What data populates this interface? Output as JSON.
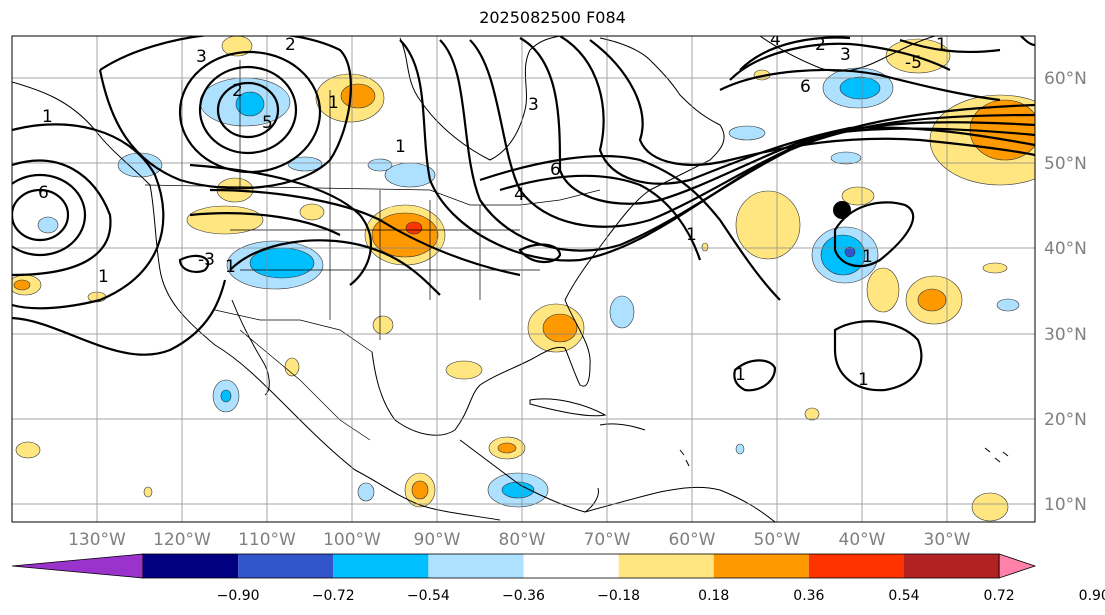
{
  "title": "2025082500 F084",
  "latitude_labels": [
    "60°N",
    "50°N",
    "40°N",
    "30°N",
    "20°N",
    "10°N"
  ],
  "longitude_labels": [
    "130°W",
    "120°W",
    "110°W",
    "100°W",
    "90°W",
    "80°W",
    "70°W",
    "60°W",
    "50°W",
    "40°W",
    "30°W"
  ],
  "colorbar": {
    "tick_labels": [
      "−0.90",
      "−0.72",
      "−0.54",
      "−0.36",
      "−0.18",
      "0.18",
      "0.36",
      "0.54",
      "0.72",
      "0.90"
    ],
    "colors": [
      "#9933cc",
      "#000080",
      "#3355cc",
      "#00bfff",
      "#aee0ff",
      "#ffffff",
      "#ffe680",
      "#ff9900",
      "#ff3300",
      "#b22222",
      "#ff80a8"
    ]
  },
  "contour_labels": [
    "3",
    "2",
    "1",
    "5",
    "6",
    "1",
    "1",
    "2",
    "3",
    "6",
    "4",
    "1",
    "-3",
    "1",
    "1",
    "1",
    "-5",
    "3",
    "2",
    "4",
    "6",
    "1",
    "1",
    "1"
  ],
  "shading_colors": {
    "light_blue": "#aee0ff",
    "blue": "#00bfff",
    "dark_blue": "#3355cc",
    "yellow": "#ffe680",
    "orange": "#ff9900",
    "red": "#ff3300"
  }
}
